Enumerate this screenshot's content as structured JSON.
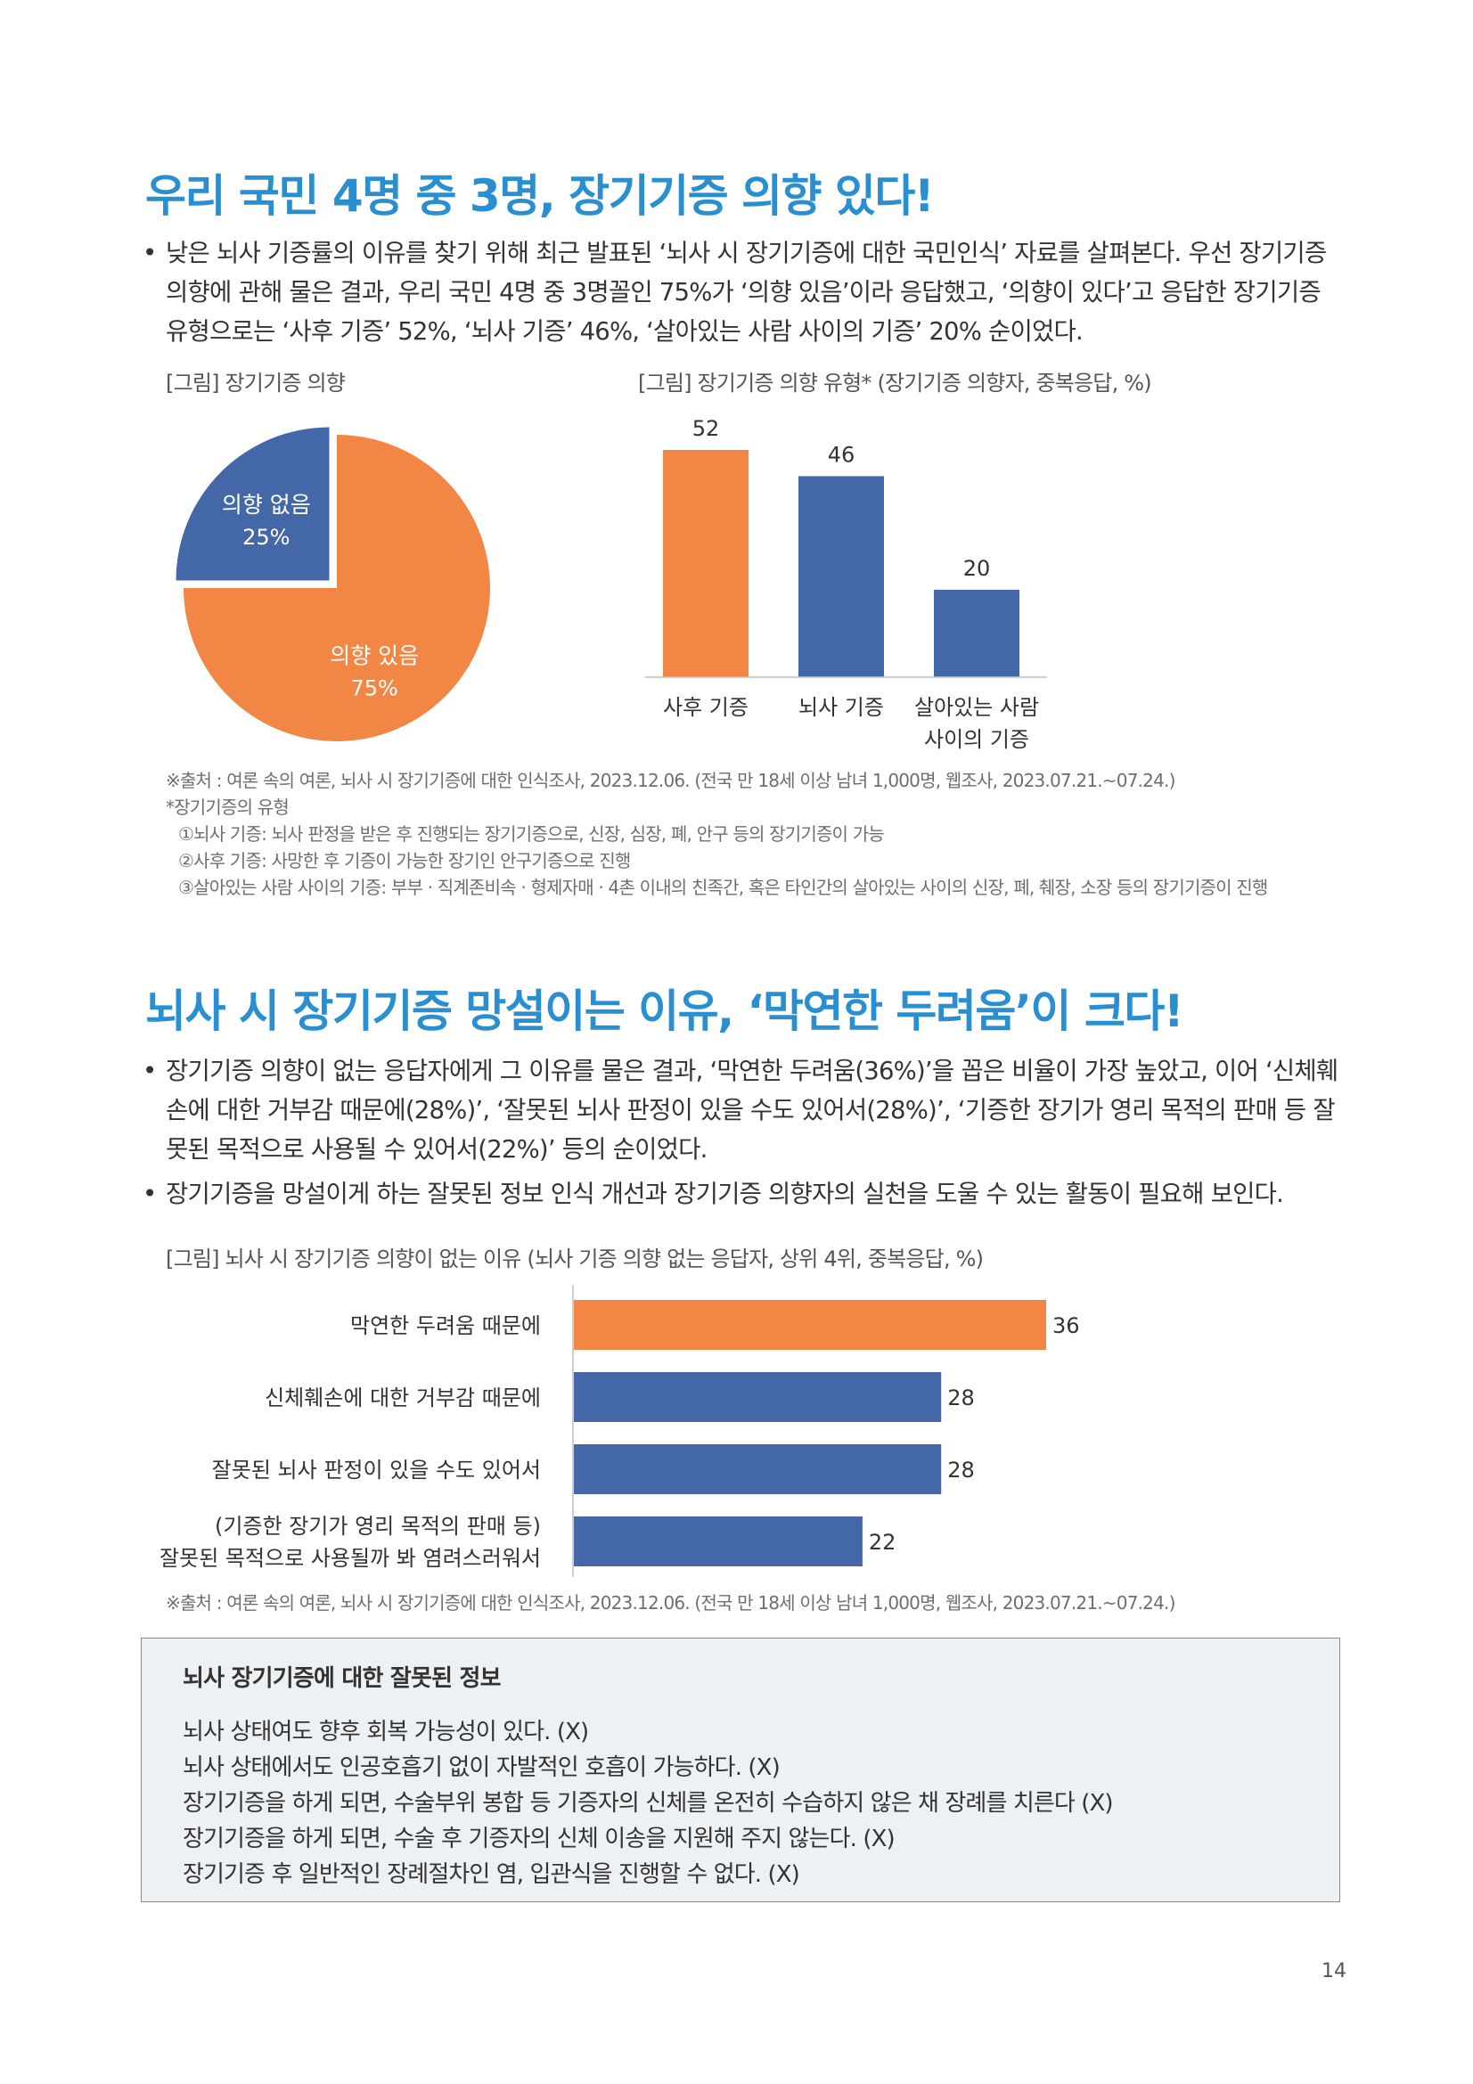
{
  "section1": {
    "heading": "우리 국민 4명 중 3명, 장기기증 의향 있다!",
    "bullet_mark": "•",
    "bullets": [
      "낮은 뇌사 기증률의 이유를 찾기 위해 최근 발표된 ‘뇌사 시 장기기증에 대한 국민인식’ 자료를 살펴본다. 우선 장기기증 의향에 관해 물은 결과, 우리 국민 4명 중 3명꼴인 75%가 ‘의향 있음’이라 응답했고, ‘의향이 있다’고 응답한 장기기증 유형으로는 ‘사후 기증’ 52%, ‘뇌사 기증’ 46%, ‘살아있는 사람 사이의 기증’ 20% 순이었다."
    ],
    "pie_caption": "[그림] 장기기증 의향",
    "bar_caption": "[그림] 장기기증 의향 유형* (장기기증 의향자, 중복응답, %)",
    "source": "※출처 : 여론 속의 여론, 뇌사 시 장기기증에 대한 인식조사, 2023.12.06. (전국 만 18세 이상 남녀 1,000명, 웹조사, 2023.07.21.~07.24.)",
    "notes_title": "*장기기증의 유형",
    "notes": [
      "①뇌사 기증: 뇌사 판정을 받은 후 진행되는 장기기증으로, 신장, 심장, 폐, 안구 등의 장기기증이 가능",
      "②사후 기증: 사망한 후 기증이 가능한 장기인 안구기증으로 진행",
      "③살아있는 사람 사이의 기증: 부부 · 직계존비속 · 형제자매 · 4촌 이내의 친족간, 혹은 타인간의 살아있는 사이의 신장, 폐, 췌장, 소장 등의 장기기증이 진행"
    ]
  },
  "section2": {
    "heading": "뇌사 시 장기기증 망설이는 이유, ‘막연한 두려움’이 크다!",
    "bullets": [
      "장기기증 의향이 없는 응답자에게 그 이유를 물은 결과, ‘막연한 두려움(36%)’을 꼽은 비율이 가장 높았고, 이어 ‘신체훼손에 대한 거부감 때문에(28%)’, ‘잘못된 뇌사 판정이 있을 수도 있어서(28%)’, ‘기증한 장기가 영리 목적의 판매 등 잘못된 목적으로 사용될 수 있어서(22%)’ 등의 순이었다.",
      "장기기증을 망설이게 하는 잘못된 정보 인식 개선과 장기기증 의향자의 실천을 도울 수 있는 활동이 필요해 보인다."
    ],
    "hbar_caption": "[그림] 뇌사 시 장기기증 의향이 없는 이유 (뇌사 기증 의향 없는 응답자, 상위 4위, 중복응답, %)",
    "source": "※출처 : 여론 속의 여론, 뇌사 시 장기기증에 대한 인식조사, 2023.12.06. (전국 만 18세 이상 남녀 1,000명, 웹조사, 2023.07.21.~07.24.)"
  },
  "infobox": {
    "title": "뇌사 장기기증에 대한 잘못된 정보",
    "items": [
      "뇌사 상태여도 향후 회복 가능성이 있다. (X)",
      "뇌사 상태에서도 인공호흡기 없이 자발적인 호흡이 가능하다. (X)",
      "장기기증을 하게 되면, 수술부위 봉합 등 기증자의 신체를 온전히 수습하지 않은 채 장례를 치른다 (X)",
      "장기기증을 하게 되면, 수술 후 기증자의 신체 이송을 지원해 주지 않는다. (X)",
      "장기기증 후 일반적인 장례절차인 염, 입관식을 진행할 수 없다. (X)"
    ]
  },
  "page_number": "14",
  "colors": {
    "heading": "#2a8fd1",
    "orange": "#f28644",
    "blue": "#4468a7"
  },
  "chart_data": [
    {
      "type": "pie",
      "title": "[그림] 장기기증 의향",
      "slices": [
        {
          "label": "의향 있음",
          "value": 75,
          "value_label": "75%",
          "color": "#f28644"
        },
        {
          "label": "의향 없음",
          "value": 25,
          "value_label": "25%",
          "color": "#4468a7"
        }
      ]
    },
    {
      "type": "bar",
      "title": "[그림] 장기기증 의향 유형* (장기기증 의향자, 중복응답, %)",
      "categories": [
        [
          "사후 기증"
        ],
        [
          "뇌사 기증"
        ],
        [
          "살아있는 사람",
          "사이의 기증"
        ]
      ],
      "values": [
        52,
        46,
        20
      ],
      "colors": [
        "#f28644",
        "#4468a7",
        "#4468a7"
      ],
      "ylim": [
        0,
        52
      ]
    },
    {
      "type": "bar",
      "orientation": "horizontal",
      "title": "[그림] 뇌사 시 장기기증 의향이 없는 이유 (뇌사 기증 의향 없는 응답자, 상위 4위, 중복응답, %)",
      "categories": [
        [
          "막연한 두려움 때문에"
        ],
        [
          "신체훼손에 대한 거부감 때문에"
        ],
        [
          "잘못된 뇌사 판정이 있을 수도 있어서"
        ],
        [
          "(기증한 장기가 영리 목적의 판매 등)",
          "잘못된 목적으로 사용될까 봐 염려스러워서"
        ]
      ],
      "values": [
        36,
        28,
        28,
        22
      ],
      "colors": [
        "#f28644",
        "#4468a7",
        "#4468a7",
        "#4468a7"
      ],
      "xlim": [
        0,
        36
      ]
    }
  ]
}
